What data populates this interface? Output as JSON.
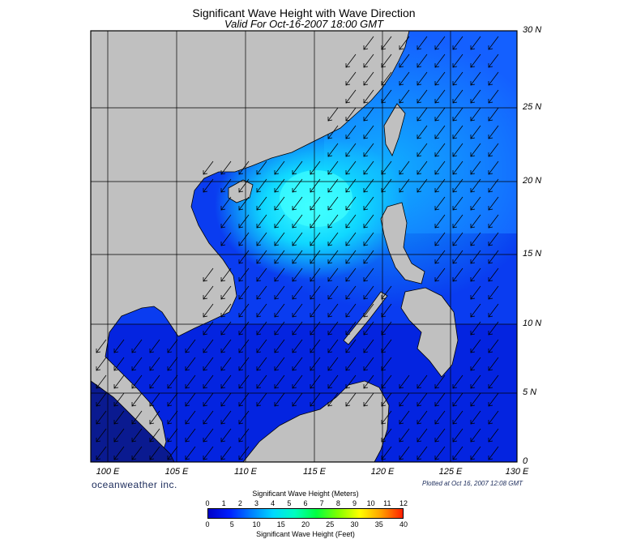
{
  "header": {
    "title": "Significant Wave Height with Wave Direction",
    "subtitle": "Valid For Oct-16-2007 18:00 GMT"
  },
  "map": {
    "lat_labels": [
      "30 N",
      "25 N",
      "20 N",
      "15 N",
      "10 N",
      "5 N",
      "0"
    ],
    "lon_labels": [
      "100 E",
      "105 E",
      "110 E",
      "115 E",
      "120 E",
      "125 E",
      "130 E"
    ],
    "lon_range": [
      99,
      130
    ],
    "lat_range": [
      0,
      30
    ],
    "land_color": "#c0c0c0",
    "arrow_direction": "toward south-west",
    "grid": true
  },
  "footer": {
    "brand": "oceanweather inc.",
    "plotted": "Plotted at Oct 16, 2007 12:08 GMT"
  },
  "colorbar": {
    "meters_title": "Significant Wave Height (Meters)",
    "feet_title": "Significant Wave Height (Feet)",
    "meters_ticks": [
      "0",
      "1",
      "2",
      "3",
      "4",
      "5",
      "6",
      "7",
      "8",
      "9",
      "10",
      "11",
      "12"
    ],
    "feet_ticks": [
      "0",
      "5",
      "10",
      "15",
      "20",
      "25",
      "30",
      "35",
      "40"
    ],
    "colors": [
      "#0000c8",
      "#0020ff",
      "#0080ff",
      "#00d8ff",
      "#00ffc0",
      "#00ff40",
      "#80ff00",
      "#ffff00",
      "#ffa000",
      "#ff2000"
    ]
  }
}
